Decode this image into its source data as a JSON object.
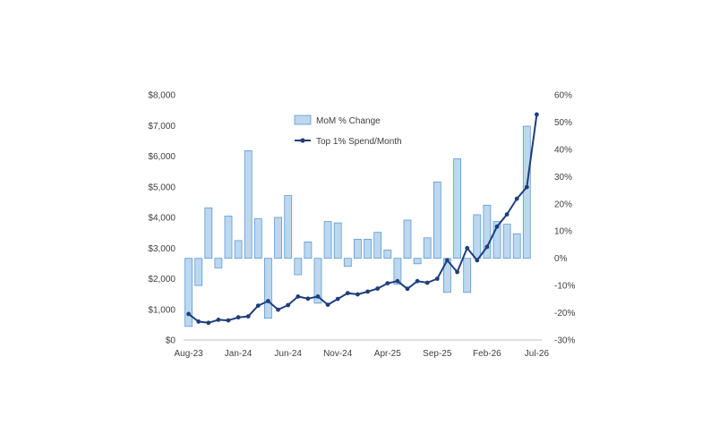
{
  "chart_data": {
    "type": "bar",
    "title": "",
    "x": [
      "Aug-23",
      "Sep-23",
      "Oct-23",
      "Nov-23",
      "Dec-23",
      "Jan-24",
      "Feb-24",
      "Mar-24",
      "Apr-24",
      "May-24",
      "Jun-24",
      "Jul-24",
      "Aug-24",
      "Sep-24",
      "Oct-24",
      "Nov-24",
      "Dec-24",
      "Jan-25",
      "Feb-25",
      "Mar-25",
      "Apr-25",
      "May-25",
      "Jun-25",
      "Jul-25",
      "Aug-25",
      "Sep-25",
      "Oct-25",
      "Nov-25",
      "Dec-25",
      "Jan-26",
      "Feb-26",
      "Mar-26",
      "Apr-26",
      "May-26",
      "Jun-26",
      "Jul-26"
    ],
    "x_tick_labels": [
      "Aug-23",
      "Jan-24",
      "Jun-24",
      "Nov-24",
      "Apr-25",
      "Sep-25",
      "Feb-26",
      "Jul-26"
    ],
    "series": [
      {
        "name": "MoM % Change",
        "type": "bar",
        "axis": "right",
        "color": "#bdd7ee",
        "border": "#5b9bd5",
        "values": [
          -25.0,
          -10.0,
          18.5,
          -3.5,
          15.5,
          6.5,
          39.5,
          14.5,
          -22.0,
          15.0,
          23.0,
          -6.0,
          6.0,
          -16.5,
          13.5,
          13.0,
          -3.0,
          7.0,
          7.0,
          9.5,
          3.0,
          -9.5,
          14.0,
          -2.0,
          7.5,
          28.0,
          -12.5,
          36.5,
          -12.5,
          16.0,
          19.5,
          13.5,
          12.5,
          9.0,
          48.5,
          null
        ]
      },
      {
        "name": "Top 1% Spend/Month",
        "type": "line",
        "axis": "left",
        "color": "#1f3e7c",
        "values": [
          850,
          600,
          560,
          660,
          640,
          740,
          770,
          1120,
          1270,
          990,
          1140,
          1420,
          1350,
          1420,
          1150,
          1340,
          1530,
          1490,
          1580,
          1680,
          1850,
          1920,
          1670,
          1920,
          1870,
          2000,
          2600,
          2220,
          3000,
          2600,
          3040,
          3700,
          4100,
          4610,
          4990,
          7360
        ]
      }
    ],
    "y_left": {
      "label": "",
      "ylim": [
        0,
        8000
      ],
      "ticks": [
        "$0",
        "$1,000",
        "$2,000",
        "$3,000",
        "$4,000",
        "$5,000",
        "$6,000",
        "$7,000",
        "$8,000"
      ]
    },
    "y_right": {
      "label": "",
      "ylim": [
        -30,
        60
      ],
      "ticks": [
        "-30%",
        "-20%",
        "-10%",
        "0%",
        "10%",
        "20%",
        "30%",
        "40%",
        "50%",
        "60%"
      ]
    },
    "legend": [
      "MoM % Change",
      "Top 1% Spend/Month"
    ],
    "legend_position": "top-center inside plot",
    "grid": false
  }
}
